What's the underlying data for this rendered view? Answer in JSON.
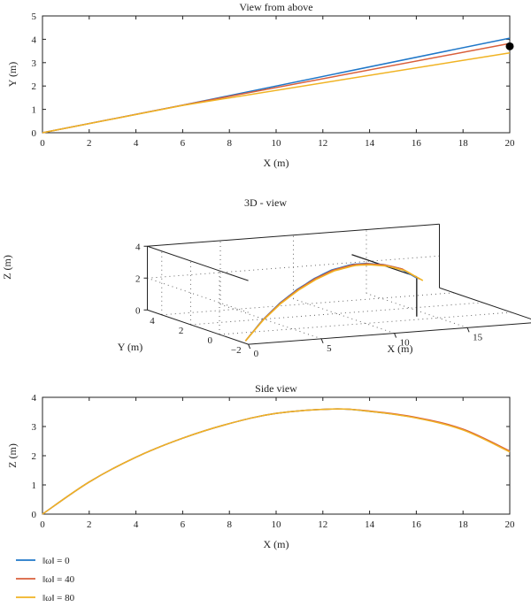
{
  "colors": {
    "omega_0": "#1f77c8",
    "omega_40": "#d95f3b",
    "omega_80": "#f0b323",
    "marker": "#000000"
  },
  "legend": [
    {
      "label": "‖ω‖ = 0",
      "color_key": "omega_0"
    },
    {
      "label": "‖ω‖ = 40",
      "color_key": "omega_40"
    },
    {
      "label": "‖ω‖ = 80",
      "color_key": "omega_80"
    }
  ],
  "chart_data": [
    {
      "type": "line",
      "title": "View from above",
      "xlabel": "X (m)",
      "ylabel": "Y (m)",
      "xlim": [
        0,
        20
      ],
      "ylim": [
        0,
        5
      ],
      "xticks": [
        "0",
        "2",
        "4",
        "6",
        "8",
        "10",
        "12",
        "14",
        "16",
        "18",
        "20"
      ],
      "yticks": [
        "0",
        "1",
        "2",
        "3",
        "4",
        "5"
      ],
      "series": [
        {
          "name": "‖ω‖ = 0",
          "color_key": "omega_0",
          "x": [
            0,
            6,
            20
          ],
          "y": [
            0,
            1.18,
            4.05
          ]
        },
        {
          "name": "‖ω‖ = 40",
          "color_key": "omega_40",
          "x": [
            0,
            6,
            20
          ],
          "y": [
            0,
            1.18,
            3.82
          ]
        },
        {
          "name": "‖ω‖ = 80",
          "color_key": "omega_80",
          "x": [
            0,
            6,
            20
          ],
          "y": [
            0,
            1.17,
            3.42
          ]
        }
      ],
      "markers": [
        {
          "x": 20,
          "y": 3.7
        }
      ]
    },
    {
      "type": "line",
      "title": "3D - view",
      "xlabel": "X (m)",
      "ylabel": "Y (m)",
      "zlabel": "Z (m)",
      "xlim": [
        0,
        20
      ],
      "ylim": [
        -2,
        5
      ],
      "zlim": [
        0,
        4
      ],
      "xticks": [
        "0",
        "5",
        "10",
        "15",
        "20"
      ],
      "yticks": [
        "−2",
        "0",
        "2",
        "4"
      ],
      "zticks": [
        "0",
        "2",
        "4"
      ],
      "series": [
        {
          "name": "‖ω‖ = 0",
          "color_key": "omega_0"
        },
        {
          "name": "‖ω‖ = 40",
          "color_key": "omega_40"
        },
        {
          "name": "‖ω‖ = 80",
          "color_key": "omega_80"
        }
      ]
    },
    {
      "type": "line",
      "title": "Side view",
      "xlabel": "X (m)",
      "ylabel": "Z (m)",
      "xlim": [
        0,
        20
      ],
      "ylim": [
        0,
        4
      ],
      "xticks": [
        "0",
        "2",
        "4",
        "6",
        "8",
        "10",
        "12",
        "14",
        "16",
        "18",
        "20"
      ],
      "yticks": [
        "0",
        "1",
        "2",
        "3",
        "4"
      ],
      "series": [
        {
          "name": "‖ω‖ = 0",
          "color_key": "omega_0",
          "x": [
            0,
            2,
            4,
            6,
            8,
            10,
            12.4,
            14,
            16,
            18,
            20
          ],
          "y": [
            0,
            1.1,
            1.95,
            2.6,
            3.1,
            3.45,
            3.6,
            3.52,
            3.3,
            2.9,
            2.15
          ]
        },
        {
          "name": "‖ω‖ = 40",
          "color_key": "omega_40",
          "x": [
            0,
            2,
            4,
            6,
            8,
            10,
            12.4,
            14,
            16,
            18,
            20
          ],
          "y": [
            0,
            1.1,
            1.95,
            2.6,
            3.1,
            3.45,
            3.6,
            3.53,
            3.31,
            2.91,
            2.16
          ]
        },
        {
          "name": "‖ω‖ = 80",
          "color_key": "omega_80",
          "x": [
            0,
            2,
            4,
            6,
            8,
            10,
            12.4,
            14,
            16,
            18,
            20
          ],
          "y": [
            0,
            1.1,
            1.95,
            2.6,
            3.1,
            3.45,
            3.6,
            3.52,
            3.29,
            2.88,
            2.13
          ]
        }
      ]
    }
  ]
}
